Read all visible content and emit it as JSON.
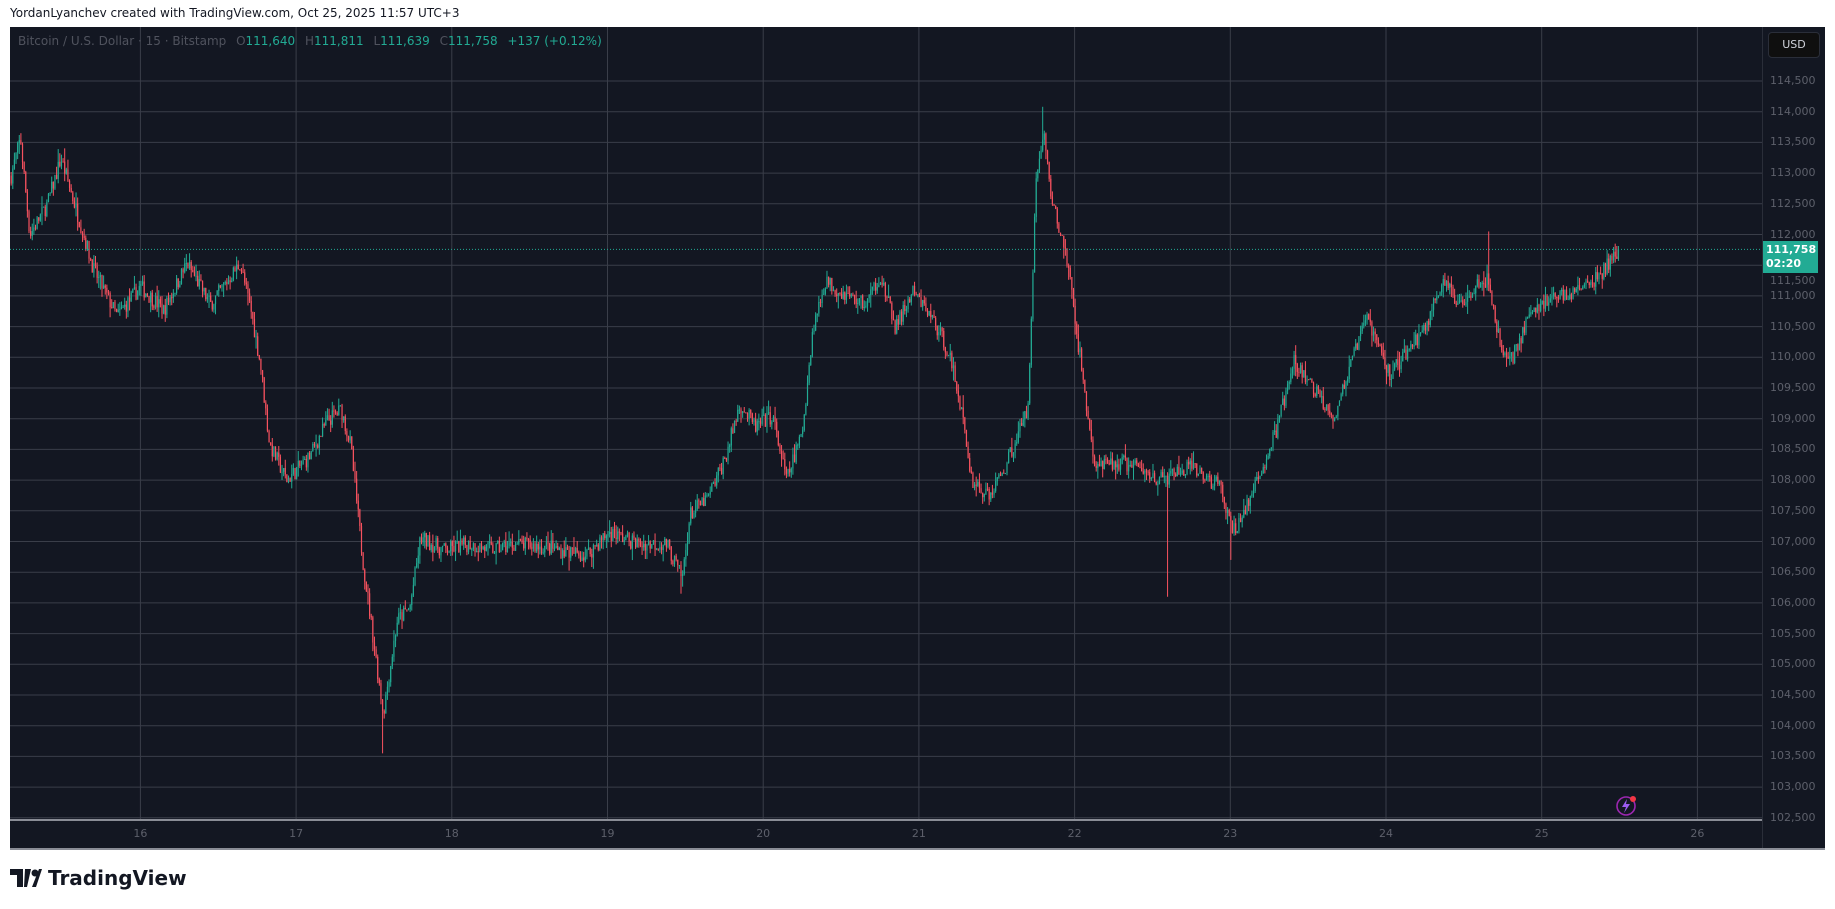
{
  "credit": "YordanLyanchev created with TradingView.com, Oct 25, 2025 11:57 UTC+3",
  "legend": {
    "symbol": "Bitcoin / U.S. Dollar · 15 · Bitstamp",
    "o_label": "O",
    "open": "111,640",
    "h_label": "H",
    "high": "111,811",
    "l_label": "L",
    "low": "111,639",
    "c_label": "C",
    "close": "111,758",
    "change": "+137 (+0.12%)"
  },
  "currency_button": "USD",
  "last_price": {
    "price": "111,758",
    "countdown": "02:20"
  },
  "brand": "TradingView",
  "chart_data": {
    "type": "candlestick",
    "interval": "15",
    "ylim": [
      102500,
      114800
    ],
    "y_ticks": [
      "114,500",
      "114,000",
      "113,500",
      "113,000",
      "112,500",
      "112,000",
      "111,500",
      "111,000",
      "110,500",
      "110,000",
      "109,500",
      "109,000",
      "108,500",
      "108,000",
      "107,500",
      "107,000",
      "106,500",
      "106,000",
      "105,500",
      "105,000",
      "104,500",
      "104,000",
      "103,500",
      "103,000",
      "102,500"
    ],
    "x_ticks": [
      "16",
      "17",
      "18",
      "19",
      "20",
      "21",
      "22",
      "23",
      "24",
      "25",
      "26"
    ],
    "xlim_day": [
      15.17,
      26.4
    ],
    "colors": {
      "up": "#22ab94",
      "down": "#f7525f",
      "background": "#131722",
      "grid": "#3a3e49",
      "last_price": "#22ab94"
    },
    "price_path": [
      [
        15.17,
        112960
      ],
      [
        15.23,
        113570
      ],
      [
        15.29,
        112000
      ],
      [
        15.4,
        112480
      ],
      [
        15.49,
        113240
      ],
      [
        15.59,
        112390
      ],
      [
        15.7,
        111430
      ],
      [
        15.85,
        110670
      ],
      [
        16.0,
        111150
      ],
      [
        16.15,
        110770
      ],
      [
        16.3,
        111530
      ],
      [
        16.45,
        110860
      ],
      [
        16.64,
        111530
      ],
      [
        16.71,
        110770
      ],
      [
        16.77,
        109910
      ],
      [
        16.83,
        108580
      ],
      [
        16.94,
        108000
      ],
      [
        17.09,
        108390
      ],
      [
        17.2,
        108960
      ],
      [
        17.29,
        109150
      ],
      [
        17.35,
        108580
      ],
      [
        17.43,
        106670
      ],
      [
        17.5,
        105340
      ],
      [
        17.56,
        104200
      ],
      [
        17.65,
        105720
      ],
      [
        17.73,
        105910
      ],
      [
        17.8,
        107050
      ],
      [
        17.95,
        106860
      ],
      [
        18.11,
        106960
      ],
      [
        18.26,
        106860
      ],
      [
        18.41,
        106960
      ],
      [
        18.63,
        106900
      ],
      [
        18.86,
        106770
      ],
      [
        19.01,
        107150
      ],
      [
        19.2,
        106960
      ],
      [
        19.38,
        106960
      ],
      [
        19.48,
        106390
      ],
      [
        19.53,
        107440
      ],
      [
        19.65,
        107720
      ],
      [
        19.76,
        108390
      ],
      [
        19.85,
        109240
      ],
      [
        19.95,
        108860
      ],
      [
        20.06,
        109050
      ],
      [
        20.15,
        108000
      ],
      [
        20.25,
        108770
      ],
      [
        20.32,
        110480
      ],
      [
        20.4,
        111240
      ],
      [
        20.51,
        111050
      ],
      [
        20.66,
        110860
      ],
      [
        20.75,
        111340
      ],
      [
        20.85,
        110480
      ],
      [
        20.96,
        111050
      ],
      [
        21.08,
        110670
      ],
      [
        21.19,
        110100
      ],
      [
        21.26,
        109340
      ],
      [
        21.34,
        108000
      ],
      [
        21.45,
        107720
      ],
      [
        21.55,
        108200
      ],
      [
        21.64,
        108770
      ],
      [
        21.7,
        109150
      ],
      [
        21.75,
        112770
      ],
      [
        21.8,
        113720
      ],
      [
        21.85,
        112580
      ],
      [
        21.95,
        111620
      ],
      [
        22.0,
        110670
      ],
      [
        22.08,
        109150
      ],
      [
        22.13,
        108200
      ],
      [
        22.32,
        108290
      ],
      [
        22.56,
        108000
      ],
      [
        22.74,
        108200
      ],
      [
        22.93,
        107910
      ],
      [
        23.02,
        107150
      ],
      [
        23.15,
        107810
      ],
      [
        23.29,
        108770
      ],
      [
        23.41,
        109910
      ],
      [
        23.52,
        109530
      ],
      [
        23.67,
        109050
      ],
      [
        23.79,
        110000
      ],
      [
        23.88,
        110670
      ],
      [
        24.02,
        109720
      ],
      [
        24.14,
        110100
      ],
      [
        24.25,
        110480
      ],
      [
        24.36,
        111240
      ],
      [
        24.47,
        110860
      ],
      [
        24.59,
        111240
      ],
      [
        24.66,
        111240
      ],
      [
        24.74,
        110100
      ],
      [
        24.81,
        110000
      ],
      [
        24.92,
        110670
      ],
      [
        25.04,
        110960
      ],
      [
        25.19,
        111050
      ],
      [
        25.34,
        111240
      ],
      [
        25.45,
        111590
      ],
      [
        25.5,
        111758
      ]
    ],
    "wick_extremes": [
      [
        15.23,
        113650
      ],
      [
        17.56,
        103550
      ],
      [
        21.8,
        114080
      ],
      [
        22.6,
        106100
      ],
      [
        24.66,
        112050
      ],
      [
        19.47,
        106150
      ],
      [
        23.0,
        106700
      ]
    ],
    "last_close": 111758
  }
}
